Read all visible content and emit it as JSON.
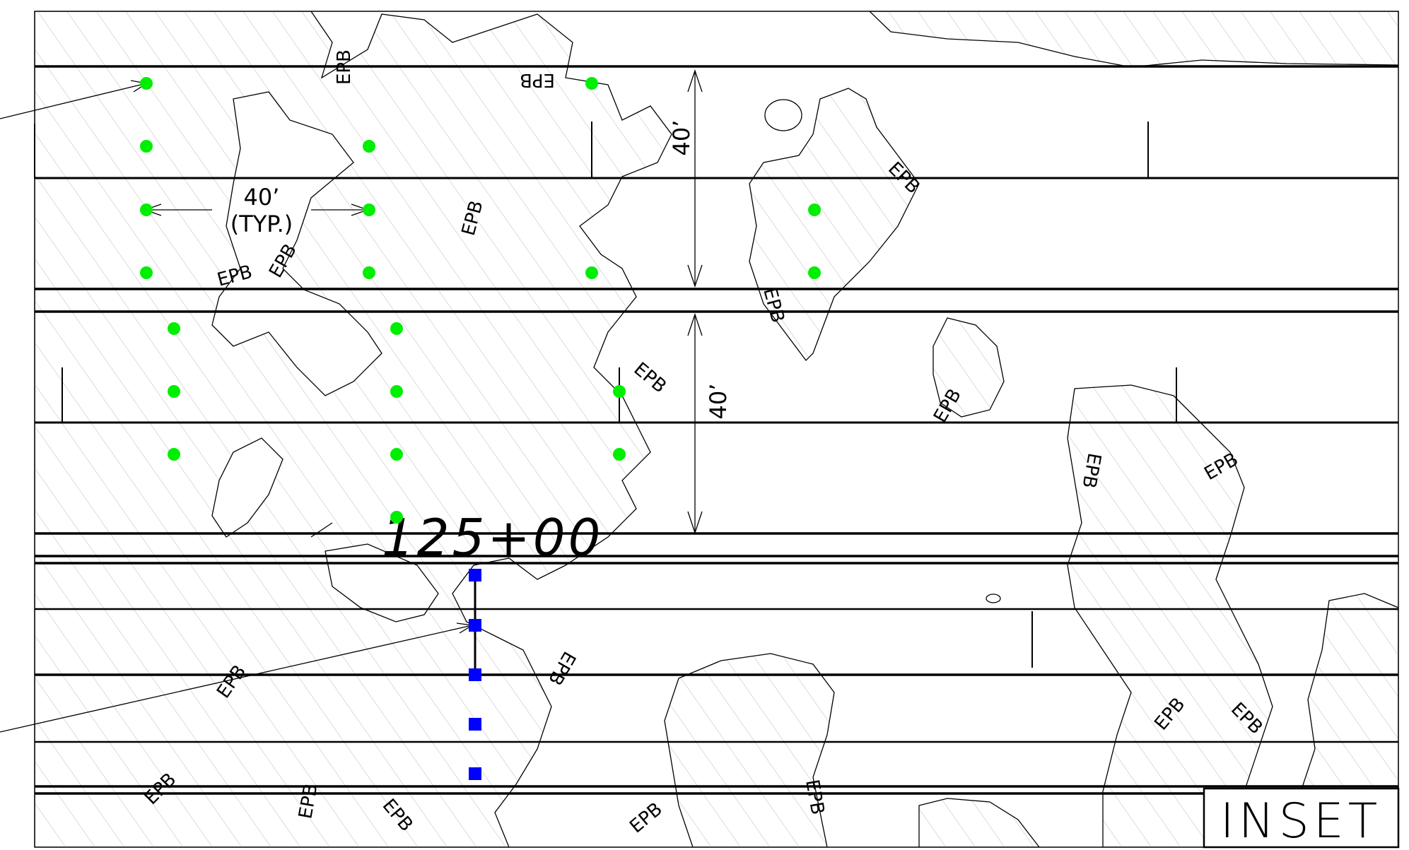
{
  "drawing": {
    "labels": {
      "dim_vertical_top": "40’",
      "dim_vertical_bottom": "40’",
      "dim_horizontal_value": "40’",
      "dim_horizontal_note": "(TYP.)",
      "station": "125+00",
      "inset": "INSET",
      "epb": "EPB"
    },
    "colors": {
      "line": "#000000",
      "hatch": "#c8c8c8",
      "green_marker": "#00ee00",
      "blue_marker": "#0000ff"
    },
    "marker_types": [
      "green-circle-marker",
      "blue-square-marker"
    ]
  }
}
